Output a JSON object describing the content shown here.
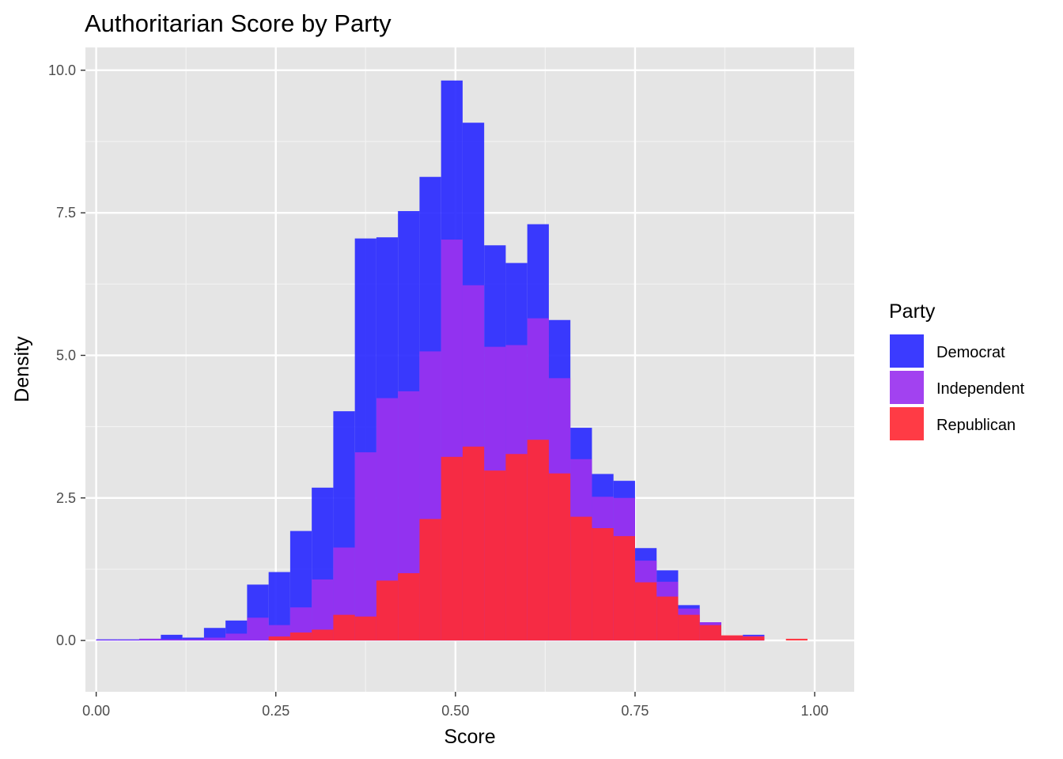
{
  "chart_data": {
    "type": "histogram",
    "title": "Authoritarian Score by Party",
    "xlabel": "Score",
    "ylabel": "Density",
    "xlim": [
      -0.015,
      1.055
    ],
    "ylim": [
      -0.9,
      10.4
    ],
    "x_ticks": [
      0,
      0.25,
      0.5,
      0.75,
      1
    ],
    "x_tick_labels": [
      "0.00",
      "0.25",
      "0.50",
      "0.75",
      "1.00"
    ],
    "y_ticks": [
      0,
      2.5,
      5,
      7.5,
      10
    ],
    "y_tick_labels": [
      "0.0",
      "2.5",
      "5.0",
      "7.5",
      "10.0"
    ],
    "grid": true,
    "panel_background": "#e5e5e5",
    "bin_width": 0.03,
    "legend": {
      "title": "Party",
      "position": "right",
      "entries": [
        "Democrat",
        "Independent",
        "Republican"
      ]
    },
    "series": [
      {
        "name": "Democrat",
        "color": "#2a2aff",
        "bins": [
          [
            0.015,
            0.02
          ],
          [
            0.045,
            0.02
          ],
          [
            0.075,
            0.03
          ],
          [
            0.105,
            0.1
          ],
          [
            0.135,
            0.05
          ],
          [
            0.165,
            0.22
          ],
          [
            0.195,
            0.35
          ],
          [
            0.225,
            0.98
          ],
          [
            0.255,
            1.2
          ],
          [
            0.285,
            1.92
          ],
          [
            0.315,
            2.68
          ],
          [
            0.345,
            4.02
          ],
          [
            0.375,
            7.05
          ],
          [
            0.405,
            7.07
          ],
          [
            0.435,
            7.53
          ],
          [
            0.465,
            8.13
          ],
          [
            0.495,
            9.82
          ],
          [
            0.525,
            9.08
          ],
          [
            0.555,
            6.93
          ],
          [
            0.585,
            6.62
          ],
          [
            0.615,
            7.3
          ],
          [
            0.645,
            5.62
          ],
          [
            0.675,
            3.73
          ],
          [
            0.705,
            2.92
          ],
          [
            0.735,
            2.8
          ],
          [
            0.765,
            1.62
          ],
          [
            0.795,
            1.23
          ],
          [
            0.825,
            0.62
          ],
          [
            0.855,
            0.32
          ],
          [
            0.885,
            0.08
          ],
          [
            0.915,
            0.1
          ],
          [
            0.945,
            0.0
          ],
          [
            0.975,
            0.0
          ]
        ]
      },
      {
        "name": "Independent",
        "color": "#9a32ef",
        "bins": [
          [
            0.015,
            0.01
          ],
          [
            0.045,
            0.01
          ],
          [
            0.075,
            0.03
          ],
          [
            0.105,
            0.02
          ],
          [
            0.135,
            0.02
          ],
          [
            0.165,
            0.05
          ],
          [
            0.195,
            0.12
          ],
          [
            0.225,
            0.4
          ],
          [
            0.255,
            0.27
          ],
          [
            0.285,
            0.58
          ],
          [
            0.315,
            1.07
          ],
          [
            0.345,
            1.63
          ],
          [
            0.375,
            3.3
          ],
          [
            0.405,
            4.25
          ],
          [
            0.435,
            4.37
          ],
          [
            0.465,
            5.07
          ],
          [
            0.495,
            7.03
          ],
          [
            0.525,
            6.23
          ],
          [
            0.555,
            5.15
          ],
          [
            0.585,
            5.18
          ],
          [
            0.615,
            5.65
          ],
          [
            0.645,
            4.6
          ],
          [
            0.675,
            3.18
          ],
          [
            0.705,
            2.52
          ],
          [
            0.735,
            2.5
          ],
          [
            0.765,
            1.4
          ],
          [
            0.795,
            1.03
          ],
          [
            0.825,
            0.56
          ],
          [
            0.855,
            0.32
          ],
          [
            0.885,
            0.08
          ],
          [
            0.915,
            0.08
          ],
          [
            0.945,
            0.0
          ],
          [
            0.975,
            0.0
          ]
        ]
      },
      {
        "name": "Republican",
        "color": "#ff2a35",
        "bins": [
          [
            0.015,
            0.0
          ],
          [
            0.045,
            0.0
          ],
          [
            0.075,
            0.0
          ],
          [
            0.105,
            0.0
          ],
          [
            0.135,
            0.0
          ],
          [
            0.165,
            0.0
          ],
          [
            0.195,
            0.0
          ],
          [
            0.225,
            0.0
          ],
          [
            0.255,
            0.07
          ],
          [
            0.285,
            0.14
          ],
          [
            0.315,
            0.19
          ],
          [
            0.345,
            0.45
          ],
          [
            0.375,
            0.42
          ],
          [
            0.405,
            1.05
          ],
          [
            0.435,
            1.18
          ],
          [
            0.465,
            2.13
          ],
          [
            0.495,
            3.22
          ],
          [
            0.525,
            3.4
          ],
          [
            0.555,
            2.98
          ],
          [
            0.585,
            3.27
          ],
          [
            0.615,
            3.52
          ],
          [
            0.645,
            2.93
          ],
          [
            0.675,
            2.17
          ],
          [
            0.705,
            1.97
          ],
          [
            0.735,
            1.83
          ],
          [
            0.765,
            1.02
          ],
          [
            0.795,
            0.77
          ],
          [
            0.825,
            0.45
          ],
          [
            0.855,
            0.27
          ],
          [
            0.885,
            0.09
          ],
          [
            0.915,
            0.07
          ],
          [
            0.945,
            0.0
          ],
          [
            0.975,
            0.03
          ]
        ]
      }
    ]
  }
}
